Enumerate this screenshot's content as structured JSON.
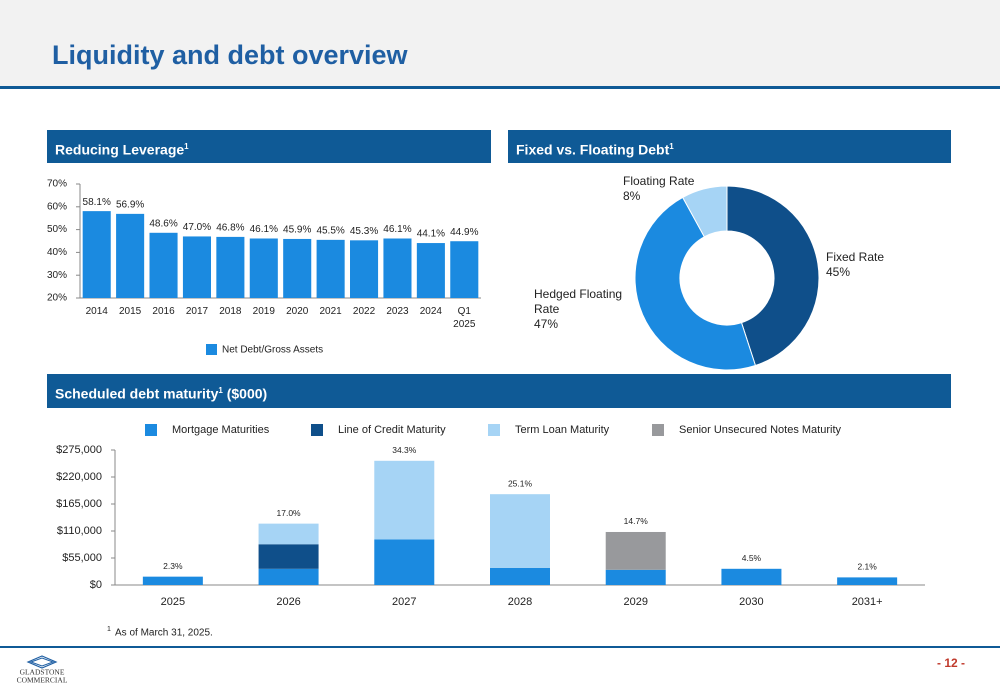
{
  "title": "Liquidity and debt overview",
  "page_number": "- 12 -",
  "footnote": {
    "marker": "1",
    "text": "As of March 31, 2025."
  },
  "logo": [
    "GLADSTONE",
    "COMMERCIAL"
  ],
  "chart_data": [
    {
      "type": "bar",
      "title": "Reducing Leverage",
      "title_note": "1",
      "categories": [
        "2014",
        "2015",
        "2016",
        "2017",
        "2018",
        "2019",
        "2020",
        "2021",
        "2022",
        "2023",
        "2024",
        "Q1 2025"
      ],
      "series": [
        {
          "name": "Net Debt/Gross Assets",
          "color": "#1b8ae0",
          "values": [
            58.1,
            56.9,
            48.6,
            47.0,
            46.8,
            46.1,
            45.9,
            45.5,
            45.3,
            46.1,
            44.1,
            44.9
          ],
          "value_labels": [
            "58.1%",
            "56.9%",
            "48.6%",
            "47.0%",
            "46.8%",
            "46.1%",
            "45.9%",
            "45.5%",
            "45.3%",
            "46.1%",
            "44.1%",
            "44.9%"
          ]
        }
      ],
      "ylim": [
        20,
        70
      ],
      "yticks": [
        {
          "value": 20,
          "label": "20%"
        },
        {
          "value": 30,
          "label": "30%"
        },
        {
          "value": 40,
          "label": "40%"
        },
        {
          "value": 50,
          "label": "50%"
        },
        {
          "value": 60,
          "label": "60%"
        },
        {
          "value": 70,
          "label": "70%"
        }
      ],
      "legend": "bottom"
    },
    {
      "type": "donut",
      "title": "Fixed vs. Floating Debt",
      "title_note": "1",
      "categories": [
        "Fixed Rate",
        "Hedged Floating Rate",
        "Floating Rate"
      ],
      "values": [
        45,
        47,
        8
      ],
      "value_labels": [
        "45%",
        "47%",
        "8%"
      ],
      "colors": [
        "#0f4f8a",
        "#1b8ae0",
        "#a6d4f5"
      ]
    },
    {
      "type": "stacked_bar",
      "title": "Scheduled debt maturity",
      "title_note": "1",
      "title_suffix": "($000)",
      "categories": [
        "2025",
        "2026",
        "2027",
        "2028",
        "2029",
        "2030",
        "2031+"
      ],
      "series": [
        {
          "name": "Mortgage Maturities",
          "color": "#1b8ae0",
          "values": [
            17000,
            33000,
            93000,
            35000,
            31000,
            33000,
            15500
          ]
        },
        {
          "name": "Line of Credit Maturity",
          "color": "#0f4f8a",
          "values": [
            null,
            50000,
            null,
            null,
            null,
            null,
            null
          ]
        },
        {
          "name": "Term Loan Maturity",
          "color": "#a6d4f5",
          "values": [
            null,
            42000,
            160000,
            150000,
            null,
            null,
            null
          ]
        },
        {
          "name": "Senior Unsecured Notes Maturity",
          "color": "#98999c",
          "values": [
            null,
            null,
            null,
            null,
            77000,
            null,
            null
          ]
        }
      ],
      "annotations": [
        "2.3%",
        "17.0%",
        "34.3%",
        "25.1%",
        "14.7%",
        "4.5%",
        "2.1%"
      ],
      "ylim": [
        0,
        275000
      ],
      "yticks": [
        {
          "value": 0,
          "label": "$0"
        },
        {
          "value": 55000,
          "label": "$55,000"
        },
        {
          "value": 110000,
          "label": "$110,000"
        },
        {
          "value": 165000,
          "label": "$165,000"
        },
        {
          "value": 220000,
          "label": "$220,000"
        },
        {
          "value": 275000,
          "label": "$275,000"
        }
      ],
      "legend": "top"
    }
  ]
}
